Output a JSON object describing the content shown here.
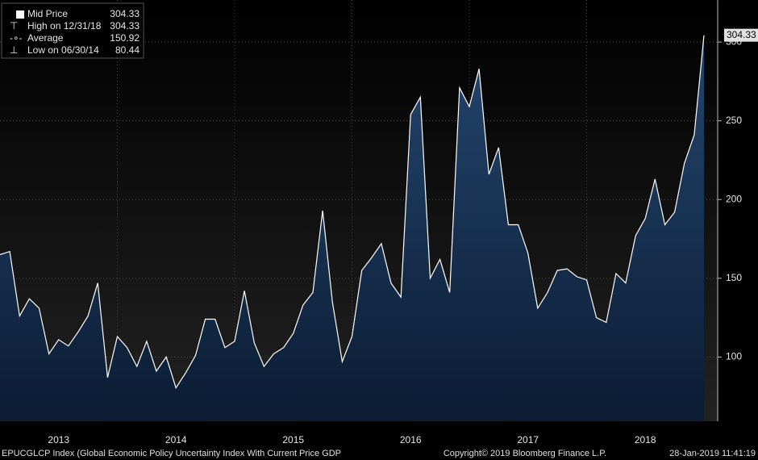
{
  "chart_data": {
    "type": "area",
    "legend_items": [
      {
        "label": "Mid Price",
        "value": 304.33
      },
      {
        "label": "High on 12/31/18",
        "value": 304.33
      },
      {
        "label": "Average",
        "value": 150.92
      },
      {
        "label": "Low on 06/30/14",
        "value": 80.44
      }
    ],
    "x": [
      2013,
      2013.083,
      2013.167,
      2013.25,
      2013.333,
      2013.417,
      2013.5,
      2013.583,
      2013.667,
      2013.75,
      2013.833,
      2013.917,
      2014,
      2014.083,
      2014.167,
      2014.25,
      2014.333,
      2014.417,
      2014.5,
      2014.583,
      2014.667,
      2014.75,
      2014.833,
      2014.917,
      2015,
      2015.083,
      2015.167,
      2015.25,
      2015.333,
      2015.417,
      2015.5,
      2015.583,
      2015.667,
      2015.75,
      2015.833,
      2015.917,
      2016,
      2016.083,
      2016.167,
      2016.25,
      2016.333,
      2016.417,
      2016.5,
      2016.583,
      2016.667,
      2016.75,
      2016.833,
      2016.917,
      2017,
      2017.083,
      2017.167,
      2017.25,
      2017.333,
      2017.417,
      2017.5,
      2017.583,
      2017.667,
      2017.75,
      2017.833,
      2017.917,
      2018,
      2018.083,
      2018.167,
      2018.25,
      2018.333,
      2018.417,
      2018.5,
      2018.583,
      2018.667,
      2018.75,
      2018.833,
      2018.917,
      2019
    ],
    "series": [
      {
        "name": "Mid Price",
        "color": "#ffffff",
        "values": [
          165,
          167,
          126,
          137,
          131,
          102,
          111,
          107,
          116,
          126,
          147,
          87,
          113,
          106,
          94,
          110,
          91,
          100,
          80.44,
          90,
          101,
          124,
          124,
          106,
          110,
          142,
          109,
          94,
          102,
          106,
          115,
          133,
          141,
          193,
          135,
          97,
          113,
          155,
          163,
          172,
          147,
          138,
          254,
          265,
          150,
          162,
          141,
          271,
          259,
          283,
          216,
          233,
          184,
          184,
          166,
          131,
          141,
          155,
          156,
          151,
          149,
          125,
          122,
          153,
          147,
          177,
          188,
          213,
          184,
          192,
          223,
          241,
          304.33
        ]
      }
    ],
    "xlim": [
      2013,
      2019.117
    ],
    "xticks": [
      {
        "value": 2013.5,
        "label": "2013"
      },
      {
        "value": 2014.5,
        "label": "2014"
      },
      {
        "value": 2015.5,
        "label": "2015"
      },
      {
        "value": 2016.5,
        "label": "2016"
      },
      {
        "value": 2017.5,
        "label": "2017"
      },
      {
        "value": 2018.5,
        "label": "2018"
      }
    ],
    "ylim": [
      59.2,
      326.7
    ],
    "yticks": [
      100,
      150,
      200,
      250,
      300
    ],
    "grid": true,
    "footer": {
      "left": "EPUCGLCP Index (Global Economic Policy Uncertainty Index With Current Price GDP",
      "center": "Copyright© 2019 Bloomberg Finance L.P.",
      "right": "28-Jan-2019 11:41:19"
    }
  }
}
